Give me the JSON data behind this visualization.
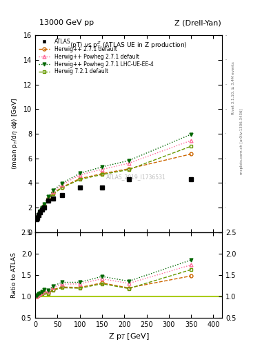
{
  "title_top_left": "13000 GeV pp",
  "title_top_right": "Z (Drell-Yan)",
  "plot_title": "<pT> vs p$_T^Z$ (ATLAS UE in Z production)",
  "xlabel": "Z p$_T$ [GeV]",
  "ylabel_main": "<mean p$_T$/dη dφ> [GeV]",
  "ylabel_ratio": "Ratio to ATLAS",
  "watermark": "ATLAS_2019_I1736531",
  "right_label_top": "Rivet 3.1.10, ≥ 3.4M events",
  "right_label_mid": "mcplots.cern.ch [arXiv:1306.3436]",
  "atlas_x": [
    2.5,
    5,
    7.5,
    10,
    15,
    20,
    30,
    40,
    60,
    100,
    150,
    210,
    350
  ],
  "atlas_y": [
    1.05,
    1.18,
    1.38,
    1.58,
    1.82,
    1.98,
    2.55,
    2.72,
    3.0,
    3.6,
    3.62,
    4.3,
    4.3
  ],
  "hw_x": [
    2.5,
    5,
    7.5,
    10,
    15,
    20,
    30,
    40,
    60,
    100,
    150,
    210,
    350
  ],
  "hw_y": [
    1.05,
    1.2,
    1.42,
    1.65,
    1.95,
    2.18,
    2.75,
    3.15,
    3.65,
    4.35,
    4.75,
    5.15,
    6.35
  ],
  "hwp_x": [
    2.5,
    5,
    7.5,
    10,
    15,
    20,
    30,
    40,
    60,
    100,
    150,
    210,
    350
  ],
  "hwp_y": [
    1.05,
    1.22,
    1.45,
    1.68,
    2.0,
    2.25,
    2.85,
    3.28,
    3.85,
    4.65,
    5.1,
    5.6,
    7.45
  ],
  "hwp_lhc_x": [
    2.5,
    5,
    7.5,
    10,
    15,
    20,
    30,
    40,
    60,
    100,
    150,
    210,
    350
  ],
  "hwp_lhc_y": [
    1.06,
    1.22,
    1.46,
    1.7,
    2.02,
    2.28,
    2.9,
    3.38,
    3.98,
    4.78,
    5.3,
    5.82,
    7.95
  ],
  "h7_x": [
    2.5,
    5,
    7.5,
    10,
    15,
    20,
    30,
    40,
    60,
    100,
    150,
    210,
    350
  ],
  "h7_y": [
    1.05,
    1.2,
    1.42,
    1.64,
    1.94,
    2.17,
    2.72,
    3.1,
    3.6,
    4.28,
    4.68,
    5.08,
    6.98
  ],
  "color_hw": "#cc6600",
  "color_hwp": "#ff6699",
  "color_hwp_lhc": "#006600",
  "color_h7": "#669900",
  "color_atlas": "#000000",
  "color_ratio_line": "#aacc00",
  "ylim_main": [
    0,
    16
  ],
  "ylim_ratio": [
    0.5,
    2.5
  ],
  "xlim": [
    0,
    420
  ]
}
